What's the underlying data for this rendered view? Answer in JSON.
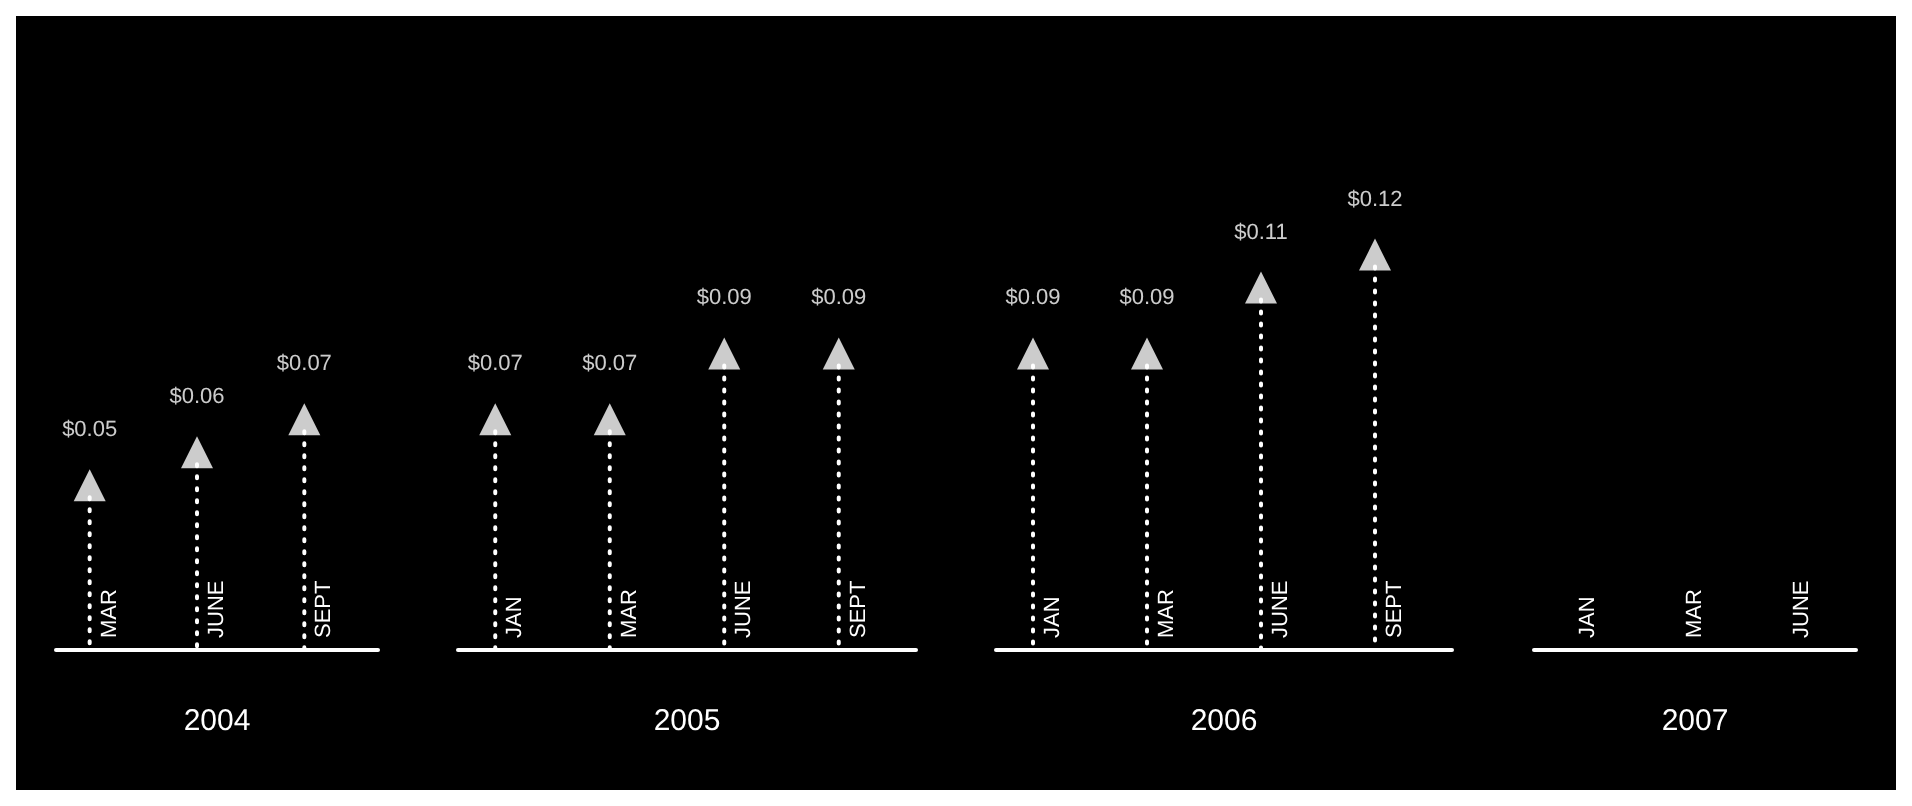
{
  "chart_data": [
    {
      "type": "lollipop",
      "xlabel": "2004",
      "categories": [
        "MAR",
        "JUNE",
        "SEPT"
      ],
      "values": [
        0.05,
        0.06,
        0.07
      ],
      "value_labels": [
        "$0.05",
        "$0.06",
        "$0.07"
      ],
      "color": "#ffffff",
      "marker": "triangle",
      "line_style": "dotted"
    },
    {
      "type": "lollipop",
      "xlabel": "2005",
      "categories": [
        "JAN",
        "MAR",
        "JUNE",
        "SEPT"
      ],
      "values": [
        0.07,
        0.07,
        0.09,
        0.09
      ],
      "value_labels": [
        "$0.07",
        "$0.07",
        "$0.09",
        "$0.09"
      ],
      "color": "#ffffff",
      "marker": "triangle",
      "line_style": "dotted"
    },
    {
      "type": "lollipop",
      "xlabel": "2006",
      "categories": [
        "JAN",
        "MAR",
        "JUNE",
        "SEPT"
      ],
      "values": [
        0.09,
        0.09,
        0.11,
        0.12
      ],
      "value_labels": [
        "$0.09",
        "$0.09",
        "$0.11",
        "$0.12"
      ],
      "color": "#ffffff",
      "marker": "triangle",
      "line_style": "dotted"
    },
    {
      "type": "other",
      "xlabel": "2007",
      "categories": [
        "JAN",
        "MAR",
        "JUNE"
      ]
    }
  ]
}
